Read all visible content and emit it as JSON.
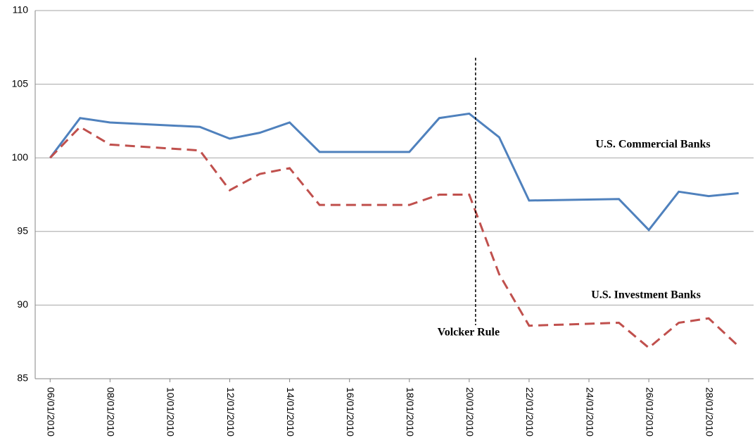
{
  "chart_data": {
    "type": "line",
    "x": [
      "2010-01-06",
      "2010-01-07",
      "2010-01-08",
      "2010-01-11",
      "2010-01-12",
      "2010-01-13",
      "2010-01-14",
      "2010-01-15",
      "2010-01-18",
      "2010-01-19",
      "2010-01-20",
      "2010-01-21",
      "2010-01-22",
      "2010-01-25",
      "2010-01-26",
      "2010-01-27",
      "2010-01-28",
      "2010-01-29"
    ],
    "series": [
      {
        "name": "U.S. Commercial Banks",
        "color": "#4f81bd",
        "dash": false,
        "values": [
          100,
          102.7,
          102.4,
          102.1,
          101.3,
          101.7,
          102.4,
          100.4,
          100.4,
          102.7,
          103.0,
          101.4,
          97.1,
          97.2,
          95.1,
          97.7,
          97.4,
          97.6
        ]
      },
      {
        "name": "U.S. Investment Banks",
        "color": "#c0504d",
        "dash": true,
        "values": [
          100,
          102.1,
          100.9,
          100.5,
          97.8,
          98.9,
          99.3,
          96.8,
          96.8,
          97.5,
          97.5,
          92.1,
          88.6,
          88.8,
          87.1,
          88.8,
          89.1,
          87.2
        ]
      }
    ],
    "annotations": [
      {
        "text": "Volcker Rule",
        "x": "2010-01-20"
      }
    ],
    "xlim": [
      "2010-01-06",
      "2010-01-29"
    ],
    "xticks": [
      {
        "value": "2010-01-06",
        "label": "06/01/2010"
      },
      {
        "value": "2010-01-08",
        "label": "08/01/2010"
      },
      {
        "value": "2010-01-10",
        "label": "10/01/2010"
      },
      {
        "value": "2010-01-12",
        "label": "12/01/2010"
      },
      {
        "value": "2010-01-14",
        "label": "14/01/2010"
      },
      {
        "value": "2010-01-16",
        "label": "16/01/2010"
      },
      {
        "value": "2010-01-18",
        "label": "18/01/2010"
      },
      {
        "value": "2010-01-20",
        "label": "20/01/2010"
      },
      {
        "value": "2010-01-22",
        "label": "22/01/2010"
      },
      {
        "value": "2010-01-24",
        "label": "24/01/2010"
      },
      {
        "value": "2010-01-26",
        "label": "26/01/2010"
      },
      {
        "value": "2010-01-28",
        "label": "28/01/2010"
      }
    ],
    "ylim": [
      85,
      110
    ],
    "yticks": [
      85,
      90,
      95,
      100,
      105,
      110
    ],
    "grid": true
  }
}
